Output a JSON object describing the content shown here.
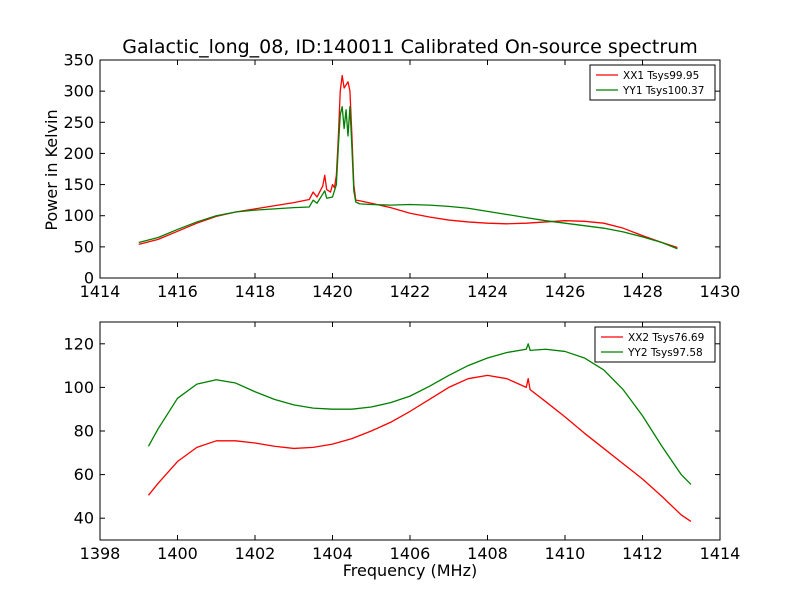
{
  "chart_data": [
    {
      "type": "line",
      "title": "Galactic_long_08, ID:140011 Calibrated On-source spectrum",
      "xlabel": "",
      "ylabel": "Power in Kelvin",
      "xlim": [
        1414,
        1430
      ],
      "ylim": [
        0,
        350
      ],
      "xticks": [
        1414,
        1416,
        1418,
        1420,
        1422,
        1424,
        1426,
        1428,
        1430
      ],
      "yticks": [
        0,
        50,
        100,
        150,
        200,
        250,
        300,
        350
      ],
      "legend_position": "top-right",
      "series": [
        {
          "name": "XX1 Tsys99.95",
          "color": "#ff0000",
          "points": [
            [
              1415.0,
              54
            ],
            [
              1415.5,
              62
            ],
            [
              1416.0,
              75
            ],
            [
              1416.5,
              88
            ],
            [
              1417.0,
              99
            ],
            [
              1417.5,
              106
            ],
            [
              1418.0,
              111
            ],
            [
              1418.5,
              116
            ],
            [
              1419.0,
              121
            ],
            [
              1419.4,
              126
            ],
            [
              1419.5,
              138
            ],
            [
              1419.6,
              130
            ],
            [
              1419.75,
              148
            ],
            [
              1419.8,
              165
            ],
            [
              1419.85,
              142
            ],
            [
              1419.95,
              138
            ],
            [
              1420.0,
              150
            ],
            [
              1420.05,
              145
            ],
            [
              1420.1,
              165
            ],
            [
              1420.15,
              225
            ],
            [
              1420.2,
              300
            ],
            [
              1420.25,
              325
            ],
            [
              1420.3,
              305
            ],
            [
              1420.35,
              310
            ],
            [
              1420.4,
              315
            ],
            [
              1420.45,
              300
            ],
            [
              1420.5,
              230
            ],
            [
              1420.55,
              150
            ],
            [
              1420.6,
              125
            ],
            [
              1420.7,
              124
            ],
            [
              1421.0,
              120
            ],
            [
              1421.5,
              113
            ],
            [
              1422.0,
              104
            ],
            [
              1422.5,
              98
            ],
            [
              1423.0,
              93
            ],
            [
              1423.5,
              90
            ],
            [
              1424.0,
              88
            ],
            [
              1424.5,
              87
            ],
            [
              1425.0,
              88
            ],
            [
              1425.5,
              90
            ],
            [
              1426.0,
              92
            ],
            [
              1426.5,
              91
            ],
            [
              1427.0,
              88
            ],
            [
              1427.5,
              80
            ],
            [
              1428.0,
              68
            ],
            [
              1428.5,
              57
            ],
            [
              1428.9,
              49
            ]
          ]
        },
        {
          "name": "YY1 Tsys100.37",
          "color": "#008000",
          "points": [
            [
              1415.0,
              57
            ],
            [
              1415.5,
              65
            ],
            [
              1416.0,
              78
            ],
            [
              1416.5,
              90
            ],
            [
              1417.0,
              100
            ],
            [
              1417.5,
              106
            ],
            [
              1418.0,
              109
            ],
            [
              1418.5,
              111
            ],
            [
              1419.0,
              113
            ],
            [
              1419.4,
              114
            ],
            [
              1419.5,
              125
            ],
            [
              1419.6,
              120
            ],
            [
              1419.75,
              135
            ],
            [
              1419.8,
              140
            ],
            [
              1419.85,
              128
            ],
            [
              1420.0,
              130
            ],
            [
              1420.1,
              150
            ],
            [
              1420.15,
              210
            ],
            [
              1420.2,
              262
            ],
            [
              1420.25,
              275
            ],
            [
              1420.3,
              240
            ],
            [
              1420.35,
              270
            ],
            [
              1420.4,
              228
            ],
            [
              1420.45,
              275
            ],
            [
              1420.5,
              210
            ],
            [
              1420.55,
              140
            ],
            [
              1420.6,
              122
            ],
            [
              1420.7,
              119
            ],
            [
              1421.0,
              118
            ],
            [
              1421.5,
              117
            ],
            [
              1422.0,
              118
            ],
            [
              1422.5,
              117
            ],
            [
              1423.0,
              115
            ],
            [
              1423.5,
              112
            ],
            [
              1424.0,
              107
            ],
            [
              1424.5,
              102
            ],
            [
              1425.0,
              97
            ],
            [
              1425.5,
              92
            ],
            [
              1426.0,
              88
            ],
            [
              1426.5,
              84
            ],
            [
              1427.0,
              80
            ],
            [
              1427.5,
              74
            ],
            [
              1428.0,
              66
            ],
            [
              1428.5,
              57
            ],
            [
              1428.9,
              47
            ]
          ]
        }
      ]
    },
    {
      "type": "line",
      "title": "",
      "xlabel": "Frequency (MHz)",
      "ylabel": "",
      "xlim": [
        1398,
        1414
      ],
      "ylim": [
        30,
        130
      ],
      "xticks": [
        1398,
        1400,
        1402,
        1404,
        1406,
        1408,
        1410,
        1412,
        1414
      ],
      "yticks": [
        40,
        60,
        80,
        100,
        120
      ],
      "legend_position": "top-right",
      "series": [
        {
          "name": "XX2 Tsys76.69",
          "color": "#ff0000",
          "points": [
            [
              1399.25,
              50.5
            ],
            [
              1399.5,
              56
            ],
            [
              1400.0,
              66
            ],
            [
              1400.5,
              72.5
            ],
            [
              1401.0,
              75.5
            ],
            [
              1401.5,
              75.5
            ],
            [
              1402.0,
              74.5
            ],
            [
              1402.5,
              73
            ],
            [
              1403.0,
              72
            ],
            [
              1403.5,
              72.5
            ],
            [
              1404.0,
              74
            ],
            [
              1404.5,
              76.5
            ],
            [
              1405.0,
              80
            ],
            [
              1405.5,
              84
            ],
            [
              1406.0,
              89
            ],
            [
              1406.5,
              94.5
            ],
            [
              1407.0,
              100
            ],
            [
              1407.5,
              104
            ],
            [
              1408.0,
              105.5
            ],
            [
              1408.5,
              104
            ],
            [
              1409.0,
              100
            ],
            [
              1409.05,
              104
            ],
            [
              1409.1,
              99
            ],
            [
              1409.5,
              93.5
            ],
            [
              1410.0,
              86.5
            ],
            [
              1410.5,
              79
            ],
            [
              1411.0,
              72
            ],
            [
              1411.5,
              65
            ],
            [
              1412.0,
              58
            ],
            [
              1412.5,
              50
            ],
            [
              1413.0,
              41.5
            ],
            [
              1413.25,
              38.5
            ]
          ]
        },
        {
          "name": "YY2 Tsys97.58",
          "color": "#008000",
          "points": [
            [
              1399.25,
              73
            ],
            [
              1399.5,
              81
            ],
            [
              1400.0,
              95
            ],
            [
              1400.5,
              101.5
            ],
            [
              1401.0,
              103.5
            ],
            [
              1401.5,
              102
            ],
            [
              1402.0,
              98
            ],
            [
              1402.5,
              94.5
            ],
            [
              1403.0,
              92
            ],
            [
              1403.5,
              90.5
            ],
            [
              1404.0,
              90
            ],
            [
              1404.5,
              90
            ],
            [
              1405.0,
              91
            ],
            [
              1405.5,
              93
            ],
            [
              1406.0,
              96
            ],
            [
              1406.5,
              100.5
            ],
            [
              1407.0,
              105.5
            ],
            [
              1407.5,
              110
            ],
            [
              1408.0,
              113.5
            ],
            [
              1408.5,
              116
            ],
            [
              1409.0,
              117.5
            ],
            [
              1409.05,
              120
            ],
            [
              1409.1,
              117
            ],
            [
              1409.5,
              117.5
            ],
            [
              1410.0,
              116.5
            ],
            [
              1410.5,
              113.5
            ],
            [
              1411.0,
              108
            ],
            [
              1411.5,
              99
            ],
            [
              1412.0,
              87
            ],
            [
              1412.5,
              73
            ],
            [
              1413.0,
              60
            ],
            [
              1413.25,
              55.5
            ]
          ]
        }
      ]
    }
  ]
}
